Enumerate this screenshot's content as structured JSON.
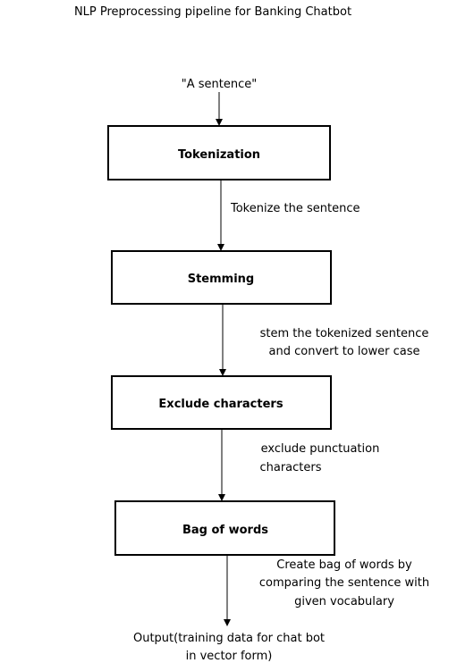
{
  "title": "NLP Preprocessing pipeline for Banking Chatbot",
  "input_label": "\"A sentence\"",
  "nodes": [
    {
      "id": "tokenization",
      "label": "Tokenization"
    },
    {
      "id": "stemming",
      "label": "Stemming"
    },
    {
      "id": "exclude",
      "label": "Exclude characters"
    },
    {
      "id": "bow",
      "label": "Bag of words"
    }
  ],
  "edges": [
    {
      "from": "input",
      "to": "tokenization",
      "lines": []
    },
    {
      "from": "tokenization",
      "to": "stemming",
      "lines": [
        "Tokenize the sentence"
      ]
    },
    {
      "from": "stemming",
      "to": "exclude",
      "lines": [
        "stem the tokenized sentence",
        "and convert to lower case"
      ]
    },
    {
      "from": "exclude",
      "to": "bow",
      "lines": [
        "exclude punctuation",
        "characters"
      ]
    },
    {
      "from": "bow",
      "to": "output",
      "lines": [
        "Create bag of words by",
        "comparing the sentence with",
        "given vocabulary"
      ]
    }
  ],
  "output_lines": [
    "Output(training data for chat bot",
    "in vector form)"
  ]
}
